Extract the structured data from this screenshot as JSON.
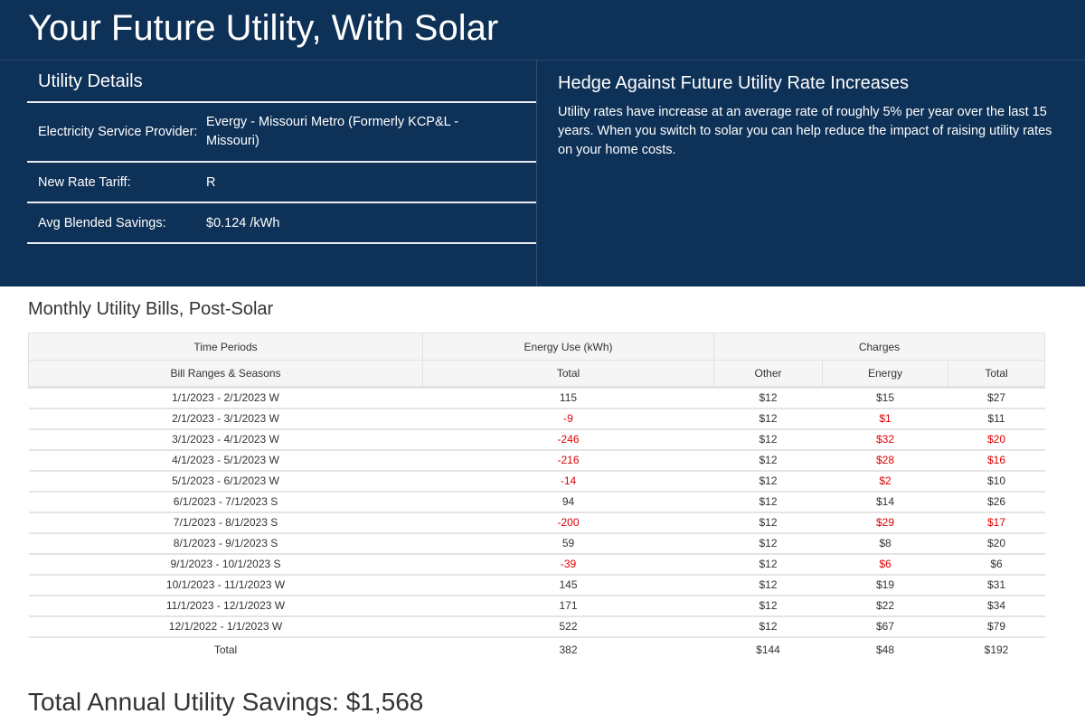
{
  "title": "Your Future Utility, With Solar",
  "details": {
    "heading": "Utility Details",
    "rows": [
      {
        "label": "Electricity Service Provider:",
        "value": "Evergy - Missouri Metro (Formerly KCP&L - Missouri)"
      },
      {
        "label": "New Rate Tariff:",
        "value": "R"
      },
      {
        "label": "Avg Blended Savings:",
        "value": "$0.124 /kWh"
      }
    ]
  },
  "hedge": {
    "heading": "Hedge Against Future Utility Rate Increases",
    "text": "Utility rates have increase at an average rate of roughly 5% per year over the last 15 years. When you switch to solar you can help reduce the impact of raising utility rates on your home costs."
  },
  "bills": {
    "heading": "Monthly Utility Bills, Post-Solar",
    "groups": [
      "Time Periods",
      "Energy Use (kWh)",
      "Charges"
    ],
    "columns": [
      "Bill Ranges & Seasons",
      "Total",
      "Other",
      "Energy",
      "Total"
    ],
    "negative_color": "#e00000",
    "rows": [
      {
        "cells": [
          "1/1/2023 - 2/1/2023 W",
          "115",
          "$12",
          "$15",
          "$27"
        ],
        "red": []
      },
      {
        "cells": [
          "2/1/2023 - 3/1/2023 W",
          "-9",
          "$12",
          "$1",
          "$11"
        ],
        "red": [
          1,
          3
        ]
      },
      {
        "cells": [
          "3/1/2023 - 4/1/2023 W",
          "-246",
          "$12",
          "$32",
          "$20"
        ],
        "red": [
          1,
          3,
          4
        ]
      },
      {
        "cells": [
          "4/1/2023 - 5/1/2023 W",
          "-216",
          "$12",
          "$28",
          "$16"
        ],
        "red": [
          1,
          3,
          4
        ]
      },
      {
        "cells": [
          "5/1/2023 - 6/1/2023 W",
          "-14",
          "$12",
          "$2",
          "$10"
        ],
        "red": [
          1,
          3
        ]
      },
      {
        "cells": [
          "6/1/2023 - 7/1/2023 S",
          "94",
          "$12",
          "$14",
          "$26"
        ],
        "red": []
      },
      {
        "cells": [
          "7/1/2023 - 8/1/2023 S",
          "-200",
          "$12",
          "$29",
          "$17"
        ],
        "red": [
          1,
          3,
          4
        ]
      },
      {
        "cells": [
          "8/1/2023 - 9/1/2023 S",
          "59",
          "$12",
          "$8",
          "$20"
        ],
        "red": []
      },
      {
        "cells": [
          "9/1/2023 - 10/1/2023 S",
          "-39",
          "$12",
          "$6",
          "$6"
        ],
        "red": [
          1,
          3
        ]
      },
      {
        "cells": [
          "10/1/2023 - 11/1/2023 W",
          "145",
          "$12",
          "$19",
          "$31"
        ],
        "red": []
      },
      {
        "cells": [
          "11/1/2023 - 12/1/2023 W",
          "171",
          "$12",
          "$22",
          "$34"
        ],
        "red": []
      },
      {
        "cells": [
          "12/1/2022 - 1/1/2023 W",
          "522",
          "$12",
          "$67",
          "$79"
        ],
        "red": []
      }
    ],
    "total": [
      "Total",
      "382",
      "$144",
      "$48",
      "$192"
    ]
  },
  "savings": "Total Annual Utility Savings: $1,568"
}
